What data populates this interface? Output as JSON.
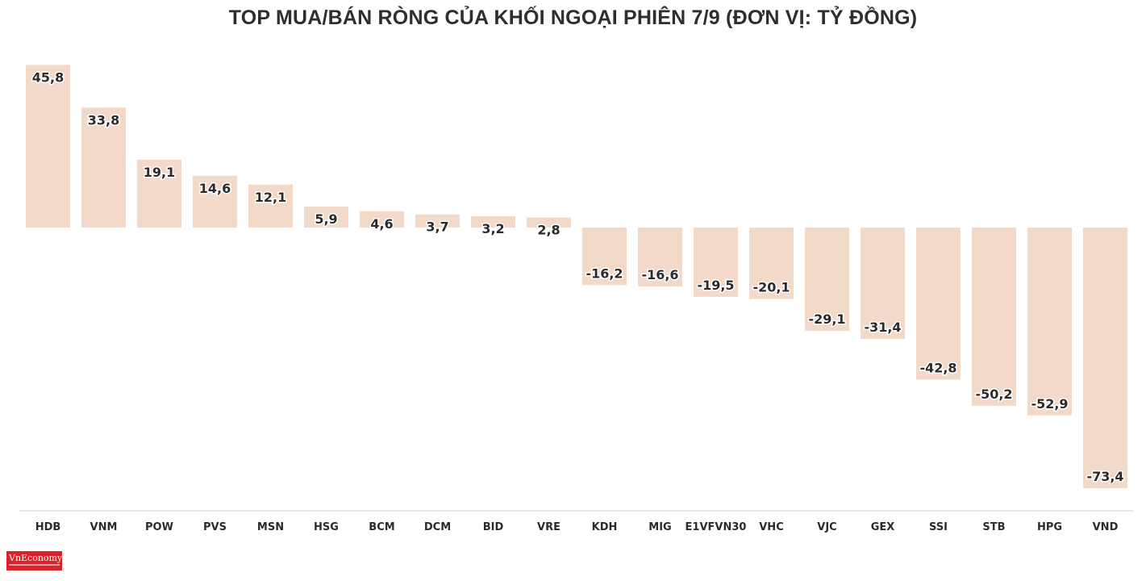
{
  "title": "TOP MUA/BÁN RÒNG CỦA KHỐI NGOẠI PHIÊN 7/9 (ĐƠN VỊ: TỶ ĐỒNG)",
  "logo": {
    "text": "VnEconomy",
    "color": "#d8232a"
  },
  "colors": {
    "bar": "#f2d9c8",
    "axis": "#cccccc",
    "text": "#2b2b2b"
  },
  "chart_data": {
    "type": "bar",
    "title": "TOP MUA/BÁN RÒNG CỦA KHỐI NGOẠI PHIÊN 7/9 (ĐƠN VỊ: TỶ ĐỒNG)",
    "categories": [
      "HDB",
      "VNM",
      "POW",
      "PVS",
      "MSN",
      "HSG",
      "BCM",
      "DCM",
      "BID",
      "VRE",
      "KDH",
      "MIG",
      "E1VFVN30",
      "VHC",
      "VJC",
      "GEX",
      "SSI",
      "STB",
      "HPG",
      "VND"
    ],
    "values": [
      45.8,
      33.8,
      19.1,
      14.6,
      12.1,
      5.9,
      4.6,
      3.7,
      3.2,
      2.8,
      -16.2,
      -16.6,
      -19.5,
      -20.1,
      -29.1,
      -31.4,
      -42.8,
      -50.2,
      -52.9,
      -73.4
    ],
    "labels": [
      "45,8",
      "33,8",
      "19,1",
      "14,6",
      "12,1",
      "5,9",
      "4,6",
      "3,7",
      "3,2",
      "2,8",
      "-16,2",
      "-16,6",
      "-19,5",
      "-20,1",
      "-29,1",
      "-31,4",
      "-42,8",
      "-50,2",
      "-52,9",
      "-73,4"
    ],
    "xlabel": "",
    "ylabel": "",
    "ylim": [
      -73.4,
      45.8
    ],
    "grid": false,
    "legend": "none"
  }
}
